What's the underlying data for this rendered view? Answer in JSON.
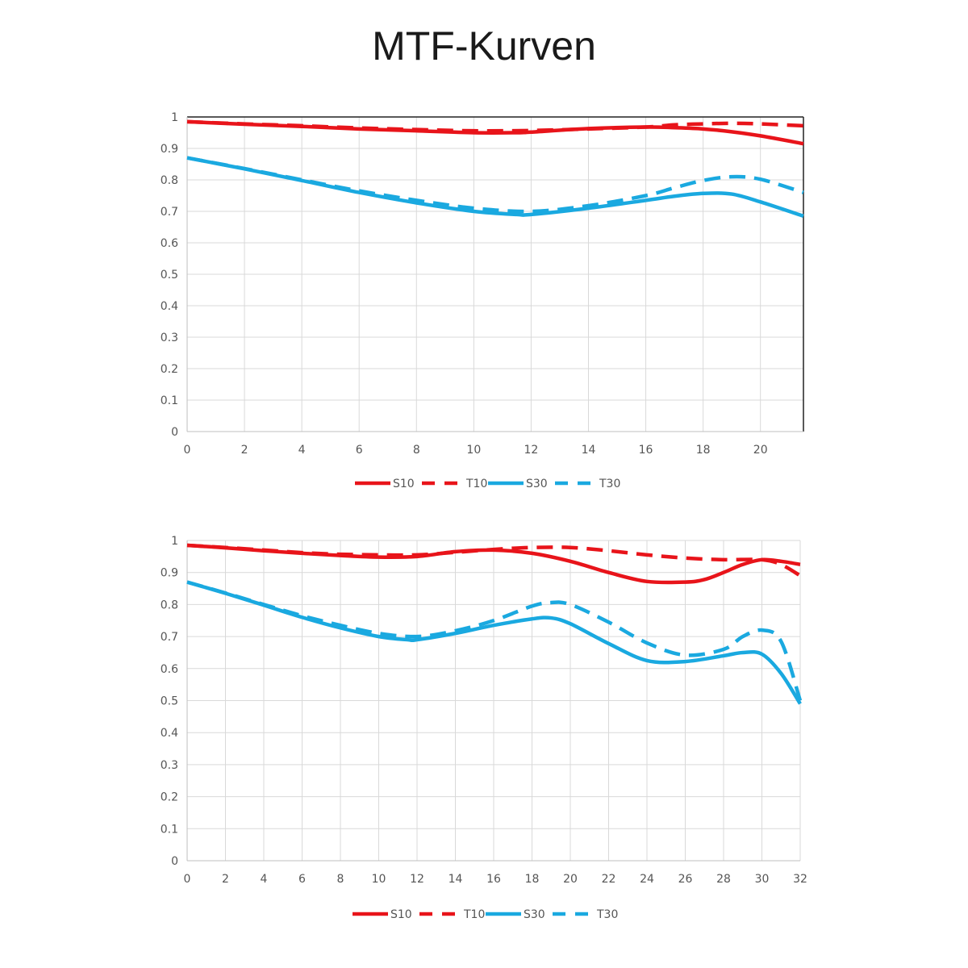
{
  "title": "MTF-Kurven",
  "chart_data": [
    {
      "type": "line",
      "xlim": [
        0,
        21.5
      ],
      "ylim": [
        0,
        1
      ],
      "xticks": [
        "0",
        "2",
        "4",
        "6",
        "8",
        "10",
        "12",
        "14",
        "16",
        "18",
        "20"
      ],
      "yticks": [
        "0",
        "0.1",
        "0.2",
        "0.3",
        "0.4",
        "0.5",
        "0.6",
        "0.7",
        "0.8",
        "0.9",
        "1"
      ],
      "grid": true,
      "legend_position": "bottom",
      "series": [
        {
          "name": "S10",
          "color": "#e8141a",
          "style": "solid",
          "x": [
            0,
            2,
            4,
            6,
            8,
            10,
            11.5,
            12,
            14,
            16,
            17,
            18,
            19,
            20,
            21.5
          ],
          "y": [
            0.985,
            0.977,
            0.97,
            0.962,
            0.956,
            0.95,
            0.95,
            0.952,
            0.963,
            0.968,
            0.966,
            0.962,
            0.953,
            0.94,
            0.915
          ]
        },
        {
          "name": "T10",
          "color": "#e8141a",
          "style": "dashed",
          "x": [
            0,
            2,
            4,
            6,
            8,
            10,
            12,
            14,
            16,
            17,
            18,
            19,
            20,
            21.5
          ],
          "y": [
            0.985,
            0.978,
            0.972,
            0.965,
            0.96,
            0.956,
            0.957,
            0.962,
            0.968,
            0.975,
            0.978,
            0.98,
            0.978,
            0.972
          ]
        },
        {
          "name": "S30",
          "color": "#1aa9e0",
          "style": "solid",
          "x": [
            0,
            2,
            4,
            6,
            8,
            10,
            11.5,
            12,
            14,
            16,
            17,
            18,
            19,
            20,
            21.5
          ],
          "y": [
            0.87,
            0.835,
            0.798,
            0.76,
            0.727,
            0.7,
            0.69,
            0.69,
            0.71,
            0.735,
            0.748,
            0.757,
            0.755,
            0.73,
            0.685
          ]
        },
        {
          "name": "T30",
          "color": "#1aa9e0",
          "style": "dashed",
          "x": [
            0,
            2,
            4,
            6,
            8,
            10,
            12,
            14,
            16,
            17,
            18,
            19,
            20,
            21.5
          ],
          "y": [
            0.87,
            0.836,
            0.8,
            0.765,
            0.735,
            0.71,
            0.7,
            0.718,
            0.75,
            0.775,
            0.798,
            0.81,
            0.802,
            0.76
          ]
        }
      ]
    },
    {
      "type": "line",
      "xlim": [
        0,
        32
      ],
      "ylim": [
        0,
        1
      ],
      "xticks": [
        "0",
        "2",
        "4",
        "6",
        "8",
        "10",
        "12",
        "14",
        "16",
        "18",
        "20",
        "22",
        "24",
        "26",
        "28",
        "30",
        "32"
      ],
      "yticks": [
        "0",
        "0.1",
        "0.2",
        "0.3",
        "0.4",
        "0.5",
        "0.6",
        "0.7",
        "0.8",
        "0.9",
        "1"
      ],
      "grid": true,
      "legend_position": "bottom",
      "series": [
        {
          "name": "S10",
          "color": "#e8141a",
          "style": "solid",
          "x": [
            0,
            2,
            4,
            6,
            8,
            10,
            12,
            14,
            16,
            18,
            20,
            22,
            24,
            26,
            27,
            28,
            29,
            30,
            31,
            32
          ],
          "y": [
            0.985,
            0.977,
            0.968,
            0.96,
            0.953,
            0.948,
            0.95,
            0.965,
            0.97,
            0.96,
            0.935,
            0.9,
            0.872,
            0.87,
            0.878,
            0.9,
            0.925,
            0.94,
            0.935,
            0.925
          ]
        },
        {
          "name": "T10",
          "color": "#e8141a",
          "style": "dashed",
          "x": [
            0,
            2,
            4,
            6,
            8,
            10,
            12,
            14,
            16,
            18,
            20,
            22,
            24,
            26,
            28,
            30,
            31,
            32
          ],
          "y": [
            0.985,
            0.978,
            0.97,
            0.962,
            0.957,
            0.955,
            0.955,
            0.963,
            0.972,
            0.978,
            0.978,
            0.968,
            0.955,
            0.945,
            0.94,
            0.94,
            0.925,
            0.89
          ]
        },
        {
          "name": "S30",
          "color": "#1aa9e0",
          "style": "solid",
          "x": [
            0,
            2,
            4,
            6,
            8,
            10,
            11.5,
            12,
            14,
            16,
            18,
            19,
            20,
            22,
            24,
            26,
            28,
            29,
            30,
            31,
            32
          ],
          "y": [
            0.87,
            0.835,
            0.798,
            0.76,
            0.727,
            0.7,
            0.69,
            0.69,
            0.71,
            0.735,
            0.755,
            0.758,
            0.74,
            0.678,
            0.625,
            0.622,
            0.64,
            0.65,
            0.645,
            0.585,
            0.49
          ]
        },
        {
          "name": "T30",
          "color": "#1aa9e0",
          "style": "dashed",
          "x": [
            0,
            2,
            4,
            6,
            8,
            10,
            12,
            14,
            16,
            18,
            19,
            20,
            22,
            24,
            26,
            28,
            29,
            30,
            31,
            32
          ],
          "y": [
            0.87,
            0.836,
            0.8,
            0.765,
            0.735,
            0.71,
            0.7,
            0.718,
            0.75,
            0.795,
            0.806,
            0.8,
            0.745,
            0.68,
            0.642,
            0.66,
            0.7,
            0.72,
            0.685,
            0.5
          ]
        }
      ]
    }
  ]
}
